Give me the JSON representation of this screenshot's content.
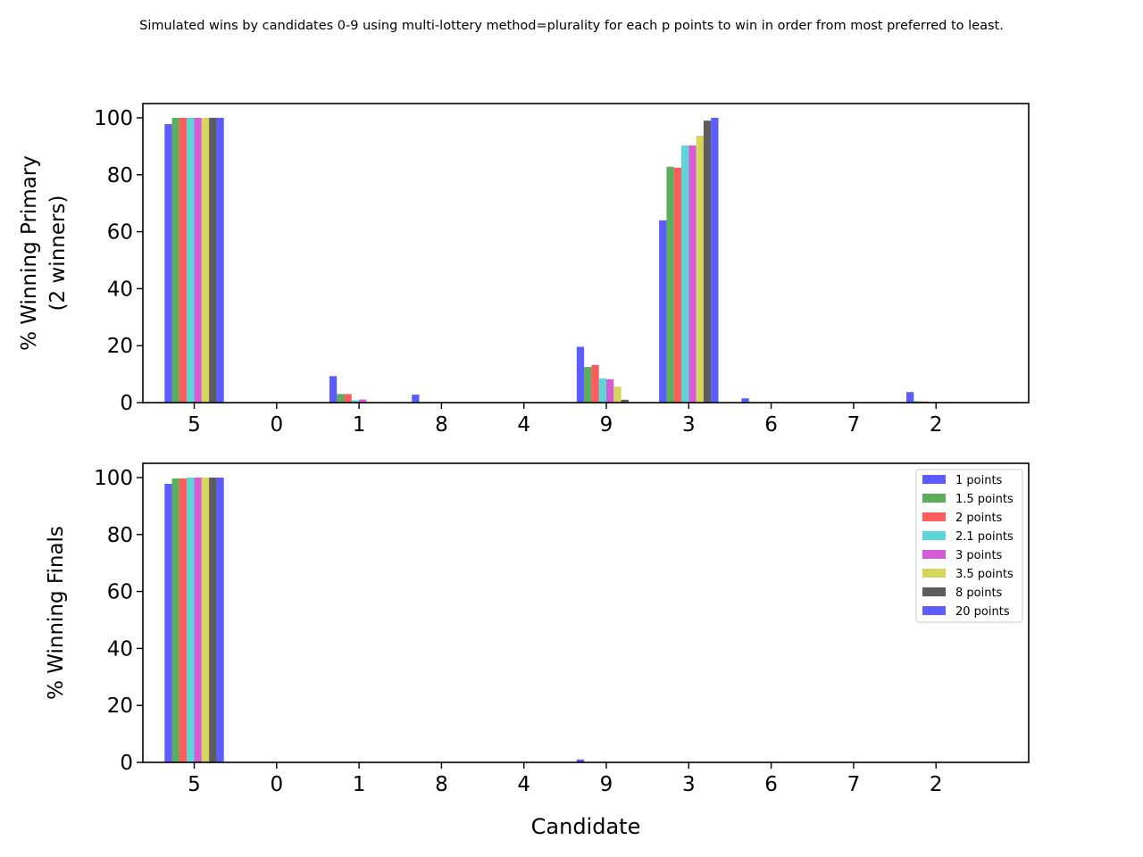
{
  "suptitle": "Simulated wins by candidates 0-9 using multi-lottery method=plurality for each p points to win in order from most preferred to least.",
  "legend": {
    "placement": "top-right",
    "entries": [
      {
        "label": "1 points",
        "color": "#3333ff"
      },
      {
        "label": "1.5 points",
        "color": "#339933"
      },
      {
        "label": "2 points",
        "color": "#ff3333"
      },
      {
        "label": "2.1 points",
        "color": "#33cccc"
      },
      {
        "label": "3 points",
        "color": "#cc33cc"
      },
      {
        "label": "3.5 points",
        "color": "#cccc33"
      },
      {
        "label": "8 points",
        "color": "#333333"
      },
      {
        "label": "20 points",
        "color": "#3333ff"
      }
    ]
  },
  "chart_data": [
    {
      "type": "bar",
      "title": "",
      "xlabel": "",
      "ylabel": [
        "% Winning Primary",
        "(2 winners)"
      ],
      "categories": [
        "5",
        "0",
        "1",
        "8",
        "4",
        "9",
        "3",
        "6",
        "7",
        "2"
      ],
      "ylim": [
        0,
        105
      ],
      "yticks": [
        0,
        20,
        40,
        60,
        80,
        100
      ],
      "grid": false,
      "series": [
        {
          "name": "1 points",
          "color": "#3333ff",
          "values": [
            97.8,
            0,
            9.3,
            2.8,
            0,
            19.6,
            64.0,
            1.5,
            0,
            3.7
          ]
        },
        {
          "name": "1.5 points",
          "color": "#339933",
          "values": [
            100,
            0,
            3.0,
            0,
            0,
            12.5,
            82.8,
            0,
            0,
            0.5
          ]
        },
        {
          "name": "2 points",
          "color": "#ff3333",
          "values": [
            100,
            0,
            3.0,
            0,
            0,
            13.2,
            82.5,
            0,
            0,
            0.4
          ]
        },
        {
          "name": "2.1 points",
          "color": "#33cccc",
          "values": [
            100,
            0,
            0.8,
            0,
            0,
            8.5,
            90.3,
            0,
            0,
            0.3
          ]
        },
        {
          "name": "3 points",
          "color": "#cc33cc",
          "values": [
            100,
            0,
            1.1,
            0,
            0,
            8.2,
            90.3,
            0,
            0,
            0.2
          ]
        },
        {
          "name": "3.5 points",
          "color": "#cccc33",
          "values": [
            100,
            0,
            0.2,
            0,
            0,
            5.6,
            93.7,
            0,
            0,
            0.3
          ]
        },
        {
          "name": "8 points",
          "color": "#333333",
          "values": [
            100,
            0,
            0,
            0,
            0,
            1.0,
            99.0,
            0,
            0,
            0
          ]
        },
        {
          "name": "20 points",
          "color": "#3333ff",
          "values": [
            100,
            0,
            0,
            0,
            0,
            0,
            100,
            0,
            0,
            0
          ]
        }
      ]
    },
    {
      "type": "bar",
      "title": "",
      "xlabel": "Candidate",
      "ylabel": [
        "% Winning Finals"
      ],
      "categories": [
        "5",
        "0",
        "1",
        "8",
        "4",
        "9",
        "3",
        "6",
        "7",
        "2"
      ],
      "ylim": [
        0,
        105
      ],
      "yticks": [
        0,
        20,
        40,
        60,
        80,
        100
      ],
      "grid": false,
      "series": [
        {
          "name": "1 points",
          "color": "#3333ff",
          "values": [
            97.8,
            0,
            0,
            0,
            0,
            1.0,
            0,
            0,
            0,
            0
          ]
        },
        {
          "name": "1.5 points",
          "color": "#339933",
          "values": [
            99.7,
            0,
            0,
            0,
            0,
            0,
            0,
            0,
            0,
            0
          ]
        },
        {
          "name": "2 points",
          "color": "#ff3333",
          "values": [
            99.7,
            0,
            0,
            0,
            0,
            0,
            0,
            0,
            0,
            0
          ]
        },
        {
          "name": "2.1 points",
          "color": "#33cccc",
          "values": [
            100,
            0,
            0,
            0,
            0,
            0,
            0,
            0,
            0,
            0
          ]
        },
        {
          "name": "3 points",
          "color": "#cc33cc",
          "values": [
            100,
            0,
            0,
            0,
            0,
            0,
            0,
            0,
            0,
            0
          ]
        },
        {
          "name": "3.5 points",
          "color": "#cccc33",
          "values": [
            100,
            0,
            0,
            0,
            0,
            0,
            0,
            0,
            0,
            0
          ]
        },
        {
          "name": "8 points",
          "color": "#333333",
          "values": [
            100,
            0,
            0,
            0,
            0,
            0,
            0,
            0,
            0,
            0
          ]
        },
        {
          "name": "20 points",
          "color": "#3333ff",
          "values": [
            100,
            0,
            0,
            0,
            0,
            0,
            0,
            0,
            0,
            0
          ]
        }
      ]
    }
  ]
}
